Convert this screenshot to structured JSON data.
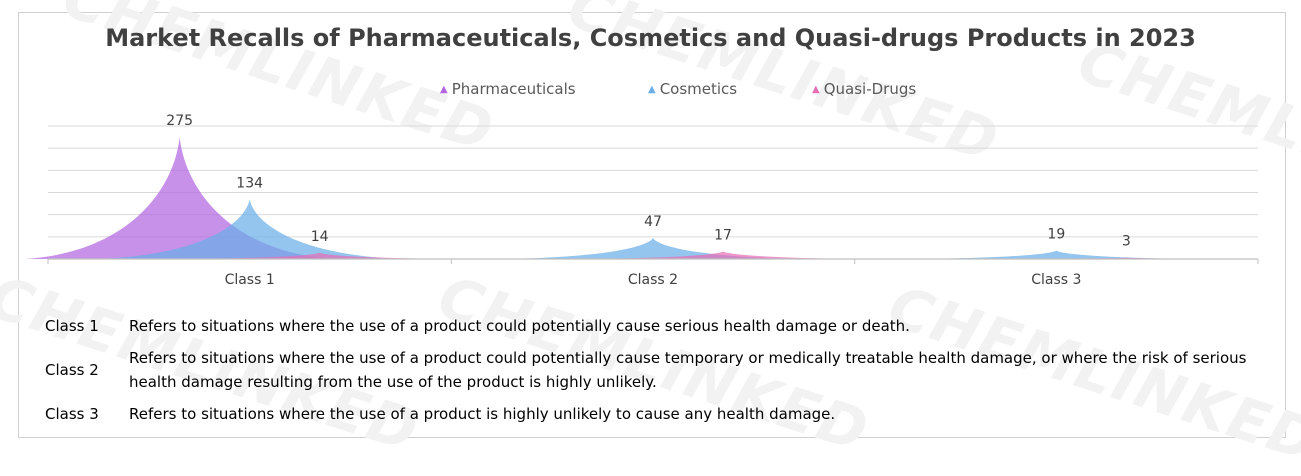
{
  "watermark_text": "CHEMLINKED",
  "chart_data": {
    "type": "area",
    "title": "Market Recalls of Pharmaceuticals, Cosmetics and Quasi-drugs Products in 2023",
    "xlabel": "",
    "ylabel": "",
    "categories": [
      "Class 1",
      "Class 2",
      "Class 3"
    ],
    "series": [
      {
        "name": "Pharmaceuticals",
        "values": [
          275,
          0,
          0
        ],
        "labels": [
          "275",
          "",
          ""
        ],
        "color": "#b366e0"
      },
      {
        "name": "Cosmetics",
        "values": [
          134,
          47,
          19
        ],
        "labels": [
          "134",
          "47",
          "19"
        ],
        "color": "#6aaee8"
      },
      {
        "name": "Quasi-Drugs",
        "values": [
          14,
          17,
          3
        ],
        "labels": [
          "14",
          "17",
          "3"
        ],
        "color": "#e66fb6"
      }
    ],
    "ylim": [
      0,
      300
    ],
    "grid": true,
    "legend": "top-center"
  },
  "definitions": [
    {
      "label": "Class 1",
      "text": "Refers to situations where the use of a product could potentially cause serious health damage or death."
    },
    {
      "label": "Class 2",
      "text": "Refers to situations where the use of a product could potentially cause temporary or medically treatable health damage, or where the risk of serious health damage resulting from the use of the product is highly unlikely."
    },
    {
      "label": "Class 3",
      "text": "Refers to situations where the use of a product is highly unlikely to cause any health damage."
    }
  ]
}
